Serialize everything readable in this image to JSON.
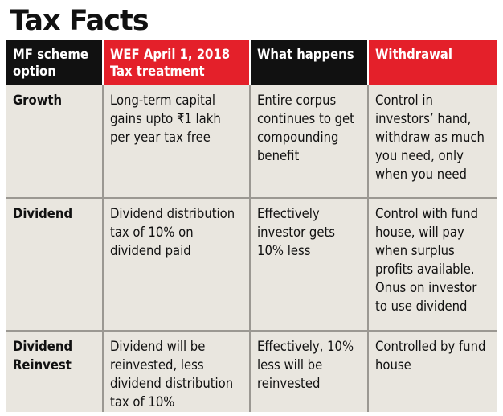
{
  "title": "Tax Facts",
  "table": {
    "headers": [
      "MF scheme option",
      "WEF April 1, 2018 Tax treatment",
      "What happens",
      "Withdrawal"
    ],
    "rows": [
      {
        "option": "Growth",
        "tax_treatment": "Long-term capital gains upto ₹1 lakh per year tax free",
        "what_happens": "Entire corpus continues to get compounding benefit",
        "withdrawal": "Control in investors’ hand, withdraw as much you need, only when you need"
      },
      {
        "option": "Dividend",
        "tax_treatment": "Dividend distribution tax of 10% on dividend paid",
        "what_happens": "Effectively investor gets 10% less",
        "withdrawal": "Control with fund house, will pay when surplus profits available. Onus on investor to use dividend"
      },
      {
        "option": "Dividend Reinvest",
        "tax_treatment": "Dividend will be reinvested, less dividend distribution tax of 10%",
        "what_happens": "Effectively, 10% less will be reinvested",
        "withdrawal": "Controlled by fund house"
      }
    ]
  },
  "colors": {
    "header_dark": "#111111",
    "header_red": "#e4202a",
    "table_background": "#e9e6df",
    "grid_lines": "#9b9892"
  }
}
